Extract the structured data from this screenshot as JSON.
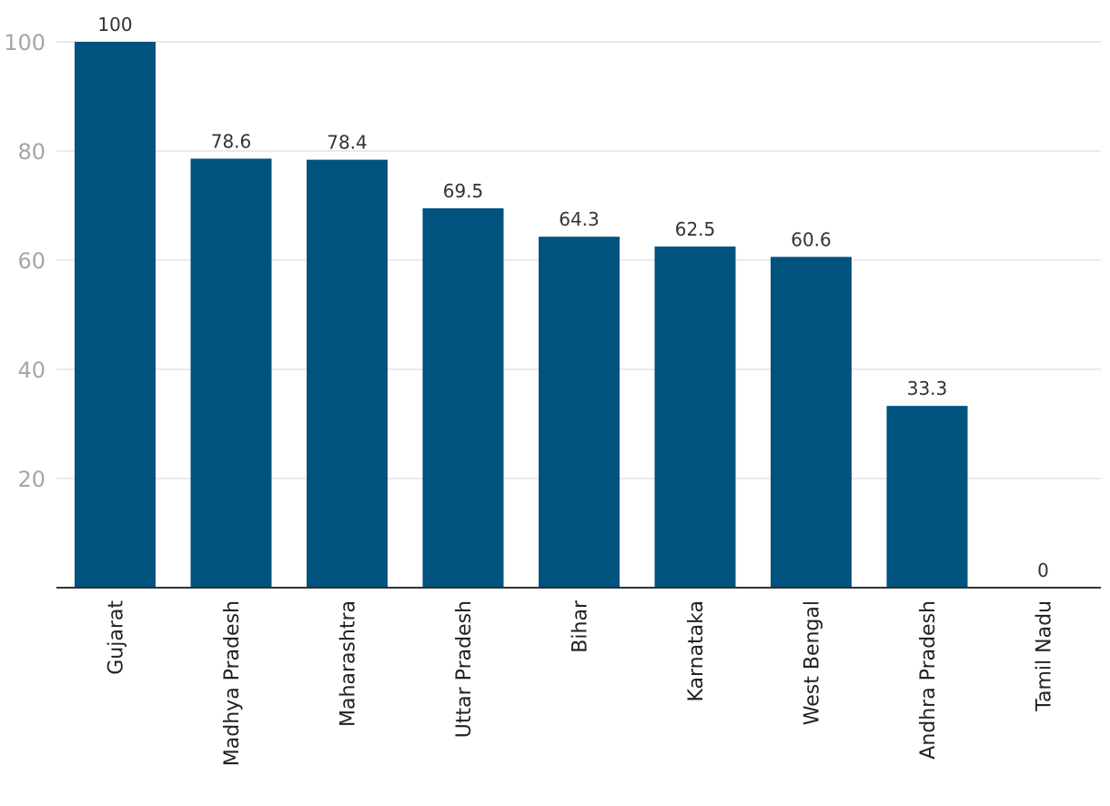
{
  "chart_data": {
    "type": "bar",
    "title": "",
    "xlabel": "",
    "ylabel": "",
    "categories": [
      "Gujarat",
      "Madhya Pradesh",
      "Maharashtra",
      "Uttar Pradesh",
      "Bihar",
      "Karnataka",
      "West Bengal",
      "Andhra Pradesh",
      "Tamil Nadu"
    ],
    "values": [
      100,
      78.6,
      78.4,
      69.5,
      64.3,
      62.5,
      60.6,
      33.3,
      0
    ],
    "value_labels": [
      "100",
      "78.6",
      "78.4",
      "69.5",
      "64.3",
      "62.5",
      "60.6",
      "33.3",
      "0"
    ],
    "ylim": [
      0,
      100
    ],
    "yticks": [
      20,
      40,
      60,
      80,
      100
    ],
    "grid": true,
    "legend": "none",
    "colors": {
      "bar": "#00527f",
      "grid": "#e3e3e3",
      "axis": "#333333"
    }
  }
}
